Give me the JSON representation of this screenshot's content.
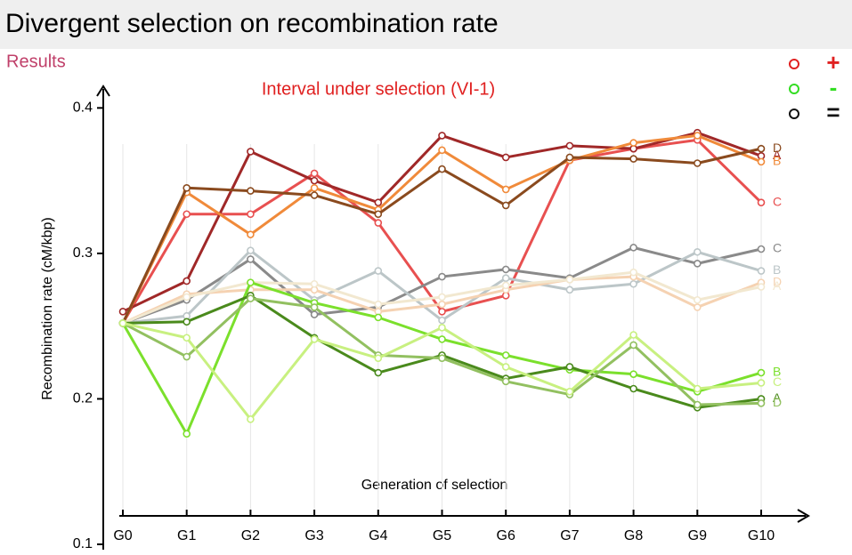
{
  "header": {
    "title": "Divergent selection on recombination rate",
    "section": "Results"
  },
  "chart_data": {
    "type": "line",
    "title": "Interval under selection (VI-1)",
    "x_label": "Generation of selection",
    "y_label": "Recombination rate (cM/kbp)",
    "categories": [
      "G0",
      "G1",
      "G2",
      "G3",
      "G4",
      "G5",
      "G6",
      "G7",
      "G8",
      "G9",
      "G10"
    ],
    "ylim": [
      0.1,
      0.41
    ],
    "yticks": [
      0.1,
      0.2,
      0.3,
      0.4
    ],
    "grid": true,
    "legend": [
      {
        "symbol": "+",
        "color": "#e02020"
      },
      {
        "symbol": "-",
        "color": "#33dd22"
      },
      {
        "symbol": "=",
        "color": "#111111"
      }
    ],
    "series": [
      {
        "name": "C",
        "color": "#e85050",
        "values": [
          0.252,
          0.327,
          0.327,
          0.355,
          0.321,
          0.26,
          0.271,
          0.364,
          0.372,
          0.378,
          0.335
        ]
      },
      {
        "name": "A",
        "color": "#a02828",
        "values": [
          0.26,
          0.281,
          0.37,
          0.35,
          0.335,
          0.381,
          0.366,
          0.374,
          0.372,
          0.383,
          0.367
        ]
      },
      {
        "name": "B",
        "color": "#f08a3a",
        "values": [
          0.252,
          0.342,
          0.313,
          0.345,
          0.33,
          0.371,
          0.344,
          0.364,
          0.376,
          0.381,
          0.363
        ]
      },
      {
        "name": "D",
        "color": "#8a4a1e",
        "values": [
          0.252,
          0.345,
          0.343,
          0.34,
          0.327,
          0.358,
          0.333,
          0.366,
          0.365,
          0.362,
          0.372
        ]
      },
      {
        "name": "C",
        "color": "#8a8a8a",
        "values": [
          0.252,
          0.268,
          0.296,
          0.258,
          0.263,
          0.284,
          0.289,
          0.283,
          0.304,
          0.293,
          0.303
        ]
      },
      {
        "name": "B",
        "color": "#bcc6c8",
        "values": [
          0.252,
          0.257,
          0.302,
          0.268,
          0.288,
          0.254,
          0.283,
          0.275,
          0.279,
          0.301,
          0.288
        ]
      },
      {
        "name": "D",
        "color": "#f5d2b2",
        "values": [
          0.252,
          0.272,
          0.275,
          0.275,
          0.26,
          0.265,
          0.275,
          0.282,
          0.284,
          0.263,
          0.28
        ]
      },
      {
        "name": "A",
        "color": "#f2e8d0",
        "values": [
          0.252,
          0.27,
          0.28,
          0.279,
          0.265,
          0.27,
          0.278,
          0.282,
          0.287,
          0.268,
          0.277
        ]
      },
      {
        "name": "B",
        "color": "#7be02c",
        "values": [
          0.252,
          0.176,
          0.28,
          0.266,
          0.256,
          0.241,
          0.23,
          0.22,
          0.217,
          0.205,
          0.218
        ]
      },
      {
        "name": "A",
        "color": "#4a8a1c",
        "values": [
          0.252,
          0.253,
          0.271,
          0.242,
          0.218,
          0.23,
          0.214,
          0.222,
          0.207,
          0.194,
          0.2
        ]
      },
      {
        "name": "D",
        "color": "#92c060",
        "values": [
          0.252,
          0.229,
          0.269,
          0.263,
          0.23,
          0.228,
          0.212,
          0.203,
          0.237,
          0.196,
          0.197
        ]
      },
      {
        "name": "C",
        "color": "#c8f080",
        "values": [
          0.252,
          0.242,
          0.186,
          0.241,
          0.228,
          0.249,
          0.222,
          0.205,
          0.244,
          0.207,
          0.211
        ]
      }
    ]
  }
}
